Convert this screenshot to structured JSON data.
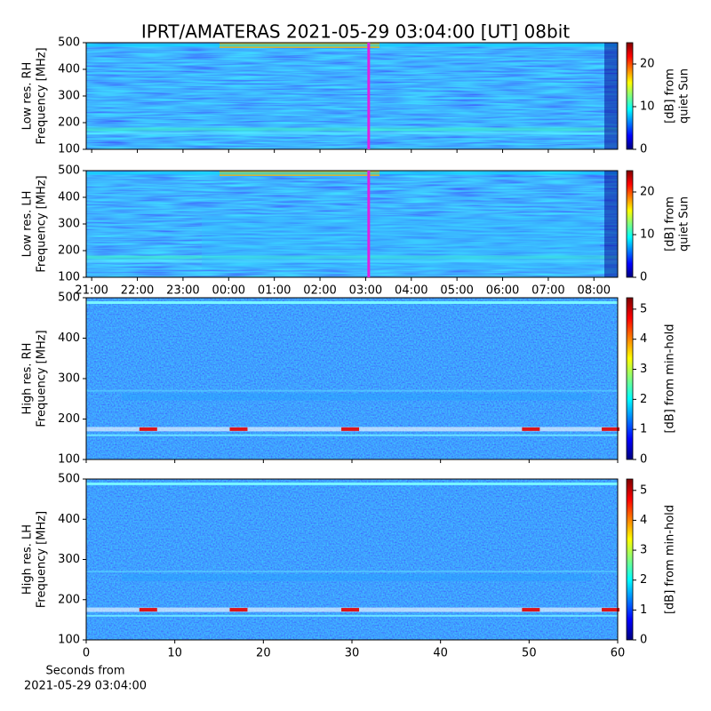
{
  "title": "IPRT/AMATERAS 2021-05-29 03:04:00 [UT]   08bit",
  "chart_data": [
    {
      "type": "heatmap",
      "ylabel": [
        "Low res. RH",
        "Frequency [MHz]"
      ],
      "ylim": [
        100,
        500
      ],
      "yticks": [
        100,
        200,
        300,
        400,
        500
      ],
      "xlim": [
        20.88,
        32.52
      ],
      "xticks": [
        21,
        22,
        23,
        24,
        25,
        26,
        27,
        28,
        29,
        30,
        31,
        32
      ],
      "xtick_labels": false,
      "cursor": {
        "value": 27.067,
        "color": "#e020e0"
      },
      "colorbar": {
        "lim": [
          0,
          25
        ],
        "ticks": [
          0,
          10,
          20
        ],
        "label": [
          "[dB] from",
          "quiet Sun"
        ]
      }
    },
    {
      "type": "heatmap",
      "ylabel": [
        "Low res. LH",
        "Frequency [MHz]"
      ],
      "ylim": [
        100,
        500
      ],
      "yticks": [
        100,
        200,
        300,
        400,
        500
      ],
      "xlim": [
        20.88,
        32.52
      ],
      "xticks": [
        {
          "value": 21,
          "label": "21:00"
        },
        {
          "value": 22,
          "label": "22:00"
        },
        {
          "value": 23,
          "label": "23:00"
        },
        {
          "value": 24,
          "label": "00:00"
        },
        {
          "value": 25,
          "label": "01:00"
        },
        {
          "value": 26,
          "label": "02:00"
        },
        {
          "value": 27,
          "label": "03:00"
        },
        {
          "value": 28,
          "label": "04:00"
        },
        {
          "value": 29,
          "label": "05:00"
        },
        {
          "value": 30,
          "label": "06:00"
        },
        {
          "value": 31,
          "label": "07:00"
        },
        {
          "value": 32,
          "label": "08:00"
        }
      ],
      "xtick_labels": true,
      "cursor": {
        "value": 27.067,
        "color": "#e020e0"
      },
      "colorbar": {
        "lim": [
          0,
          25
        ],
        "ticks": [
          0,
          10,
          20
        ],
        "label": [
          "[dB] from",
          "quiet Sun"
        ]
      }
    },
    {
      "type": "heatmap",
      "ylabel": [
        "High res. RH",
        "Frequency [MHz]"
      ],
      "ylim": [
        100,
        500
      ],
      "yticks": [
        100,
        200,
        300,
        400,
        500
      ],
      "xlim": [
        0,
        60
      ],
      "xticks": [
        0,
        10,
        20,
        30,
        40,
        50,
        60
      ],
      "xtick_labels": false,
      "colorbar": {
        "lim": [
          0,
          5.38
        ],
        "ticks": [
          0,
          1,
          2,
          3,
          4,
          5
        ],
        "label": [
          "[dB] from min-hold"
        ]
      }
    },
    {
      "type": "heatmap",
      "ylabel": [
        "High res. LH",
        "Frequency [MHz]"
      ],
      "ylim": [
        100,
        500
      ],
      "yticks": [
        100,
        200,
        300,
        400,
        500
      ],
      "xlim": [
        0,
        60
      ],
      "xticks": [
        0,
        10,
        20,
        30,
        40,
        50,
        60
      ],
      "xtick_labels": true,
      "xlabel": [
        "Seconds from",
        "2021-05-29 03:04:00"
      ],
      "colorbar": {
        "lim": [
          0,
          5.38
        ],
        "ticks": [
          0,
          1,
          2,
          3,
          4,
          5
        ],
        "label": [
          "[dB] from min-hold"
        ]
      }
    }
  ]
}
